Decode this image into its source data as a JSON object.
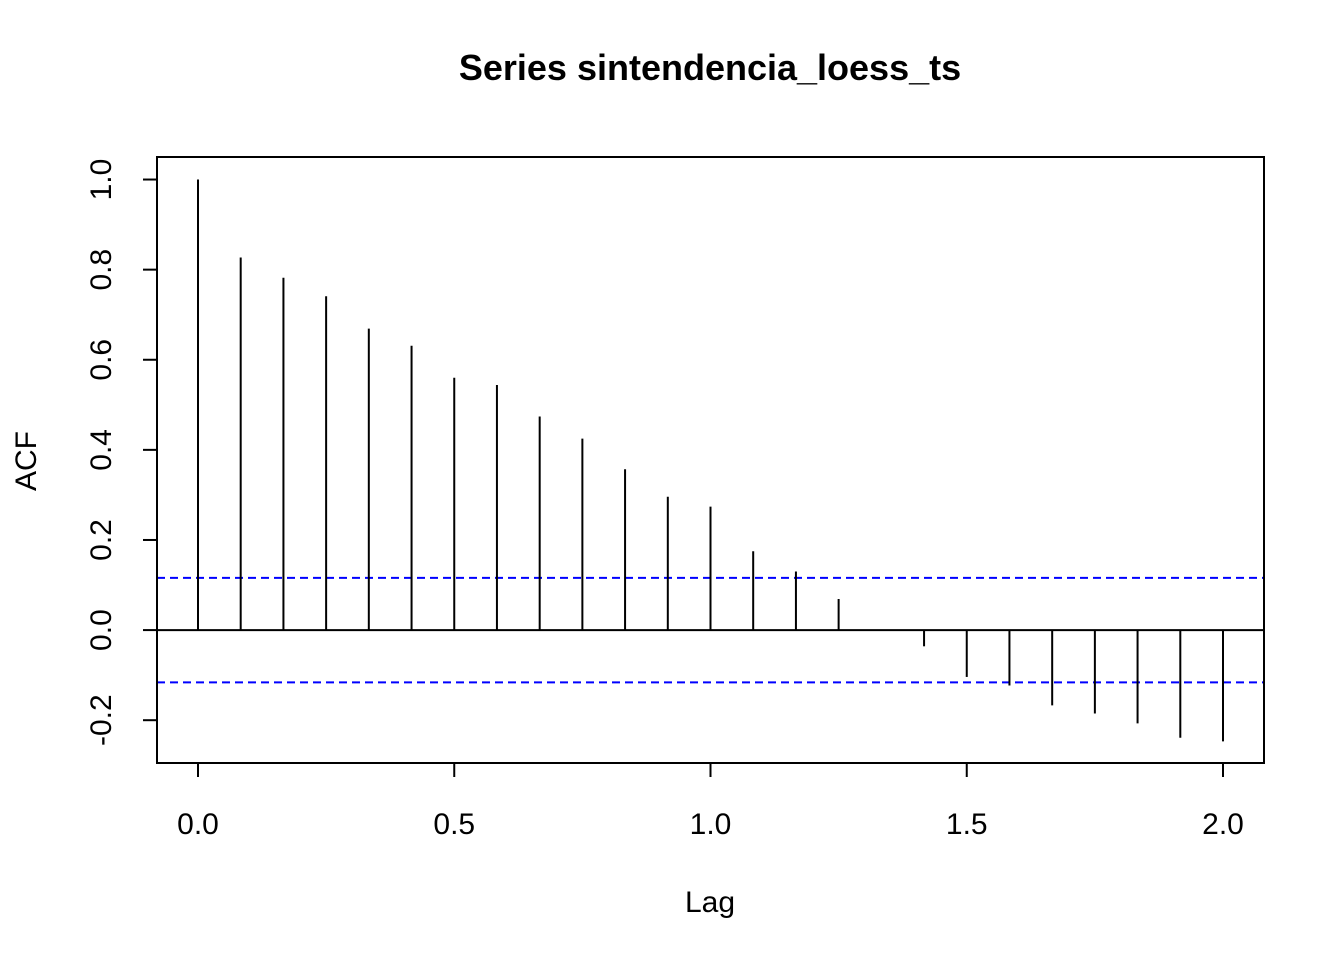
{
  "chart_data": {
    "type": "bar",
    "subtype": "acf-stem",
    "title": "Series  sintendencia_loess_ts",
    "xlabel": "Lag",
    "ylabel": "ACF",
    "xlim": [
      -0.08,
      2.08
    ],
    "ylim": [
      -0.295,
      1.05
    ],
    "x_ticks": [
      0.0,
      0.5,
      1.0,
      1.5,
      2.0
    ],
    "x_tick_labels": [
      "0.0",
      "0.5",
      "1.0",
      "1.5",
      "2.0"
    ],
    "y_ticks": [
      -0.2,
      0.0,
      0.2,
      0.4,
      0.6,
      0.8,
      1.0
    ],
    "y_tick_labels": [
      "-0.2",
      "0.0",
      "0.2",
      "0.4",
      "0.6",
      "0.8",
      "1.0"
    ],
    "zero_line": true,
    "confidence_bounds": {
      "upper": 0.116,
      "lower": -0.116,
      "color": "#0000ff",
      "style": "dashed"
    },
    "stem_color": "#000000",
    "lags": [
      0.0,
      0.0833,
      0.1667,
      0.25,
      0.3333,
      0.4167,
      0.5,
      0.5833,
      0.6667,
      0.75,
      0.8333,
      0.9167,
      1.0,
      1.0833,
      1.1667,
      1.25,
      1.3333,
      1.4167,
      1.5,
      1.5833,
      1.6667,
      1.75,
      1.8333,
      1.9167,
      2.0
    ],
    "values": [
      1.0,
      0.827,
      0.782,
      0.741,
      0.669,
      0.631,
      0.56,
      0.544,
      0.474,
      0.425,
      0.357,
      0.296,
      0.274,
      0.175,
      0.13,
      0.069,
      0.0,
      -0.036,
      -0.104,
      -0.123,
      -0.167,
      -0.185,
      -0.207,
      -0.239,
      -0.247
    ]
  }
}
